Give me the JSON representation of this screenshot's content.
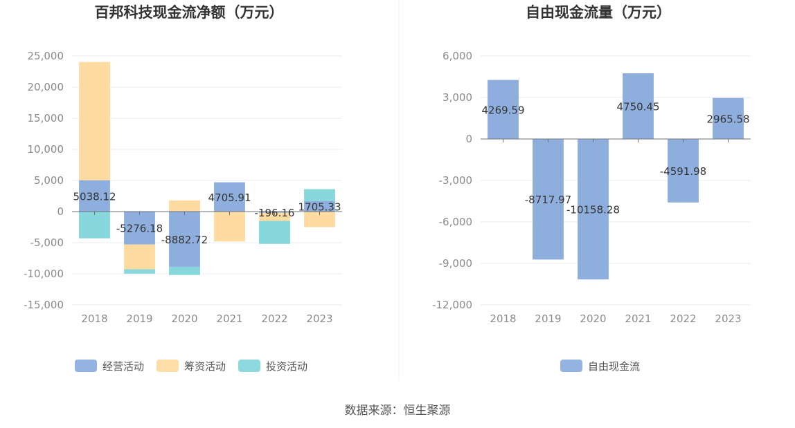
{
  "colors": {
    "operating": "#8eafde",
    "financing": "#fedca1",
    "investing": "#86d8dc",
    "free_cash_flow": "#8eafde",
    "grid": "#e8ebf3",
    "axis": "#6e7079"
  },
  "source": "数据来源：恒生聚源",
  "chart_data": [
    {
      "type": "bar",
      "stacked": true,
      "title": "百邦科技现金流净额（万元）",
      "categories": [
        "2018",
        "2019",
        "2020",
        "2021",
        "2022",
        "2023"
      ],
      "ylim": [
        -15000,
        25000
      ],
      "yticks": [
        25000,
        20000,
        15000,
        10000,
        5000,
        0,
        -5000,
        -10000,
        -15000
      ],
      "ytick_labels": [
        "25,000",
        "20,000",
        "15,000",
        "10,000",
        "5,000",
        "0",
        "-5,000",
        "-10,000",
        "-15,000"
      ],
      "grid": true,
      "legend_position": "bottom",
      "series": [
        {
          "name": "经营活动",
          "color_key": "operating",
          "values": [
            5038.12,
            -5276.18,
            -8882.72,
            4705.91,
            -196.16,
            1705.33
          ],
          "labels": [
            "5038.12",
            "-5276.18",
            "-8882.72",
            "4705.91",
            "-196.16",
            "1705.33"
          ]
        },
        {
          "name": "筹资活动",
          "color_key": "financing",
          "values": [
            19000,
            -4000,
            1800,
            -4800,
            -1300,
            -2500
          ]
        },
        {
          "name": "投资活动",
          "color_key": "investing",
          "values": [
            -4300,
            -700,
            -1300,
            0,
            -3700,
            1900
          ]
        }
      ]
    },
    {
      "type": "bar",
      "title": "自由现金流量（万元）",
      "categories": [
        "2018",
        "2019",
        "2020",
        "2021",
        "2022",
        "2023"
      ],
      "ylim": [
        -12000,
        6000
      ],
      "yticks": [
        6000,
        3000,
        0,
        -3000,
        -6000,
        -9000,
        -12000
      ],
      "ytick_labels": [
        "6,000",
        "3,000",
        "0",
        "-3,000",
        "-6,000",
        "-9,000",
        "-12,000"
      ],
      "grid": true,
      "legend_position": "bottom",
      "series": [
        {
          "name": "自由现金流",
          "color_key": "free_cash_flow",
          "values": [
            4269.59,
            -8717.97,
            -10158.28,
            4750.45,
            -4591.98,
            2965.58
          ],
          "labels": [
            "4269.59",
            "-8717.97",
            "-10158.28",
            "4750.45",
            "-4591.98",
            "2965.58"
          ]
        }
      ]
    }
  ]
}
